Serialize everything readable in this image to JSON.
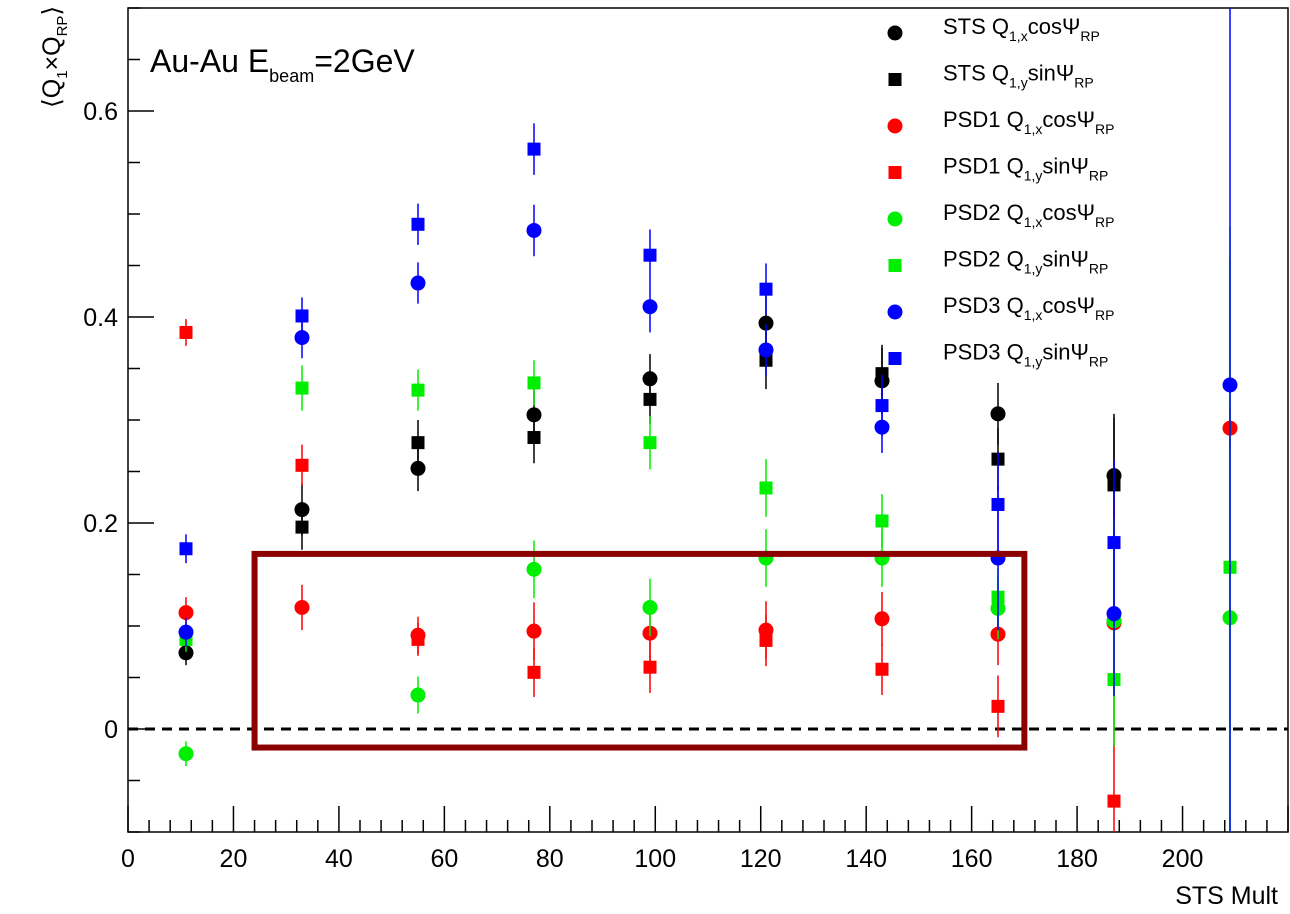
{
  "chart_data": {
    "type": "scatter",
    "title": "",
    "xlabel": "STS Mult",
    "ylabel": "⟨Q1×QRP⟩",
    "ylabel_parts": {
      "open": "⟨Q",
      "s1": "1",
      "mid": "×Q",
      "s2": "RP",
      "close": "⟩"
    },
    "xlim": [
      0,
      220
    ],
    "ylim": [
      -0.1,
      0.7
    ],
    "xticks": [
      0,
      20,
      40,
      60,
      80,
      100,
      120,
      140,
      160,
      180,
      200
    ],
    "yticks": [
      0,
      0.2,
      0.4,
      0.6
    ],
    "x": [
      11,
      33,
      55,
      77,
      99,
      121,
      143,
      165,
      187,
      209
    ],
    "grid": false,
    "legend_position": "top-right",
    "annotation": {
      "a": "Au-Au E",
      "sub": "beam",
      "b": "=2GeV"
    },
    "reference_line": {
      "y": 0,
      "style": "dashed"
    },
    "highlight_box": {
      "x": [
        24,
        170
      ],
      "y": [
        -0.018,
        0.17
      ],
      "color": "#8b0000"
    },
    "series": [
      {
        "name": "STS Q1,xcosΨRP",
        "label": {
          "main": "STS Q",
          "sub1": "1,x",
          "mid": "cosΨ",
          "sub2": "RP"
        },
        "color": "#000000",
        "marker": "circle",
        "y": [
          0.074,
          0.213,
          0.253,
          0.305,
          0.34,
          0.394,
          0.338,
          0.306,
          0.246,
          null
        ],
        "err": [
          0.012,
          0.025,
          0.022,
          0.026,
          0.024,
          0.034,
          0.032,
          0.03,
          0.06,
          null
        ]
      },
      {
        "name": "STS Q1,ysinΨRP",
        "label": {
          "main": "STS Q",
          "sub1": "1,y",
          "mid": "sinΨ",
          "sub2": "RP"
        },
        "color": "#000000",
        "marker": "square",
        "y": [
          null,
          0.196,
          0.278,
          0.283,
          0.32,
          0.358,
          0.345,
          0.262,
          0.237,
          null
        ],
        "err": [
          null,
          0.022,
          0.022,
          0.025,
          0.024,
          0.028,
          0.028,
          0.03,
          0.065,
          null
        ]
      },
      {
        "name": "PSD1 Q1,xcosΨRP",
        "label": {
          "main": "PSD1 Q",
          "sub1": "1,x",
          "mid": "cosΨ",
          "sub2": "RP"
        },
        "color": "#ff0000",
        "marker": "circle",
        "y": [
          0.113,
          0.118,
          0.091,
          0.095,
          0.093,
          0.096,
          0.107,
          0.092,
          0.103,
          0.292
        ],
        "err": [
          0.015,
          0.022,
          0.018,
          0.028,
          0.028,
          0.028,
          0.026,
          0.03,
          0.12,
          0.02
        ]
      },
      {
        "name": "PSD1 Q1,ysinΨRP",
        "label": {
          "main": "PSD1 Q",
          "sub1": "1,y",
          "mid": "sinΨ",
          "sub2": "RP"
        },
        "color": "#ff0000",
        "marker": "square",
        "y": [
          0.385,
          0.256,
          0.087,
          0.055,
          0.06,
          0.086,
          0.058,
          0.022,
          -0.07,
          null
        ],
        "err": [
          0.013,
          0.02,
          0.016,
          0.024,
          0.025,
          0.025,
          0.025,
          0.03,
          0.055,
          null
        ]
      },
      {
        "name": "PSD2 Q1,xcosΨRP",
        "label": {
          "main": "PSD2 Q",
          "sub1": "1,x",
          "mid": "cosΨ",
          "sub2": "RP"
        },
        "color": "#00ee00",
        "marker": "circle",
        "y": [
          -0.024,
          null,
          0.033,
          0.155,
          0.118,
          0.166,
          0.166,
          0.117,
          0.105,
          0.108
        ],
        "err": [
          0.012,
          null,
          0.018,
          0.028,
          0.028,
          0.028,
          0.028,
          0.03,
          0.1,
          0.38
        ]
      },
      {
        "name": "PSD2 Q1,ysinΨRP",
        "label": {
          "main": "PSD2 Q",
          "sub1": "1,y",
          "mid": "sinΨ",
          "sub2": "RP"
        },
        "color": "#00ee00",
        "marker": "square",
        "y": [
          0.087,
          0.331,
          0.329,
          0.336,
          0.278,
          0.234,
          0.202,
          0.128,
          0.048,
          0.157
        ],
        "err": [
          0.012,
          0.022,
          0.02,
          0.022,
          0.026,
          0.028,
          0.026,
          0.028,
          0.065,
          0.3
        ]
      },
      {
        "name": "PSD3 Q1,xcosΨRP",
        "label": {
          "main": "PSD3 Q",
          "sub1": "1,x",
          "mid": "cosΨ",
          "sub2": "RP"
        },
        "color": "#0000ff",
        "marker": "circle",
        "y": [
          0.094,
          0.38,
          0.433,
          0.484,
          0.41,
          0.368,
          0.293,
          0.166,
          0.112,
          0.334
        ],
        "err": [
          0.014,
          0.02,
          0.02,
          0.025,
          0.025,
          0.025,
          0.025,
          0.07,
          0.08,
          1.0
        ]
      },
      {
        "name": "PSD3 Q1,ysinΨRP",
        "label": {
          "main": "PSD3 Q",
          "sub1": "1,y",
          "mid": "sinΨ",
          "sub2": "RP"
        },
        "color": "#0000ff",
        "marker": "square",
        "y": [
          0.175,
          0.401,
          0.49,
          0.563,
          0.46,
          0.427,
          0.314,
          0.218,
          0.181,
          null
        ],
        "err": [
          0.014,
          0.018,
          0.02,
          0.025,
          0.025,
          0.025,
          0.03,
          0.05,
          0.08,
          null
        ]
      }
    ]
  }
}
